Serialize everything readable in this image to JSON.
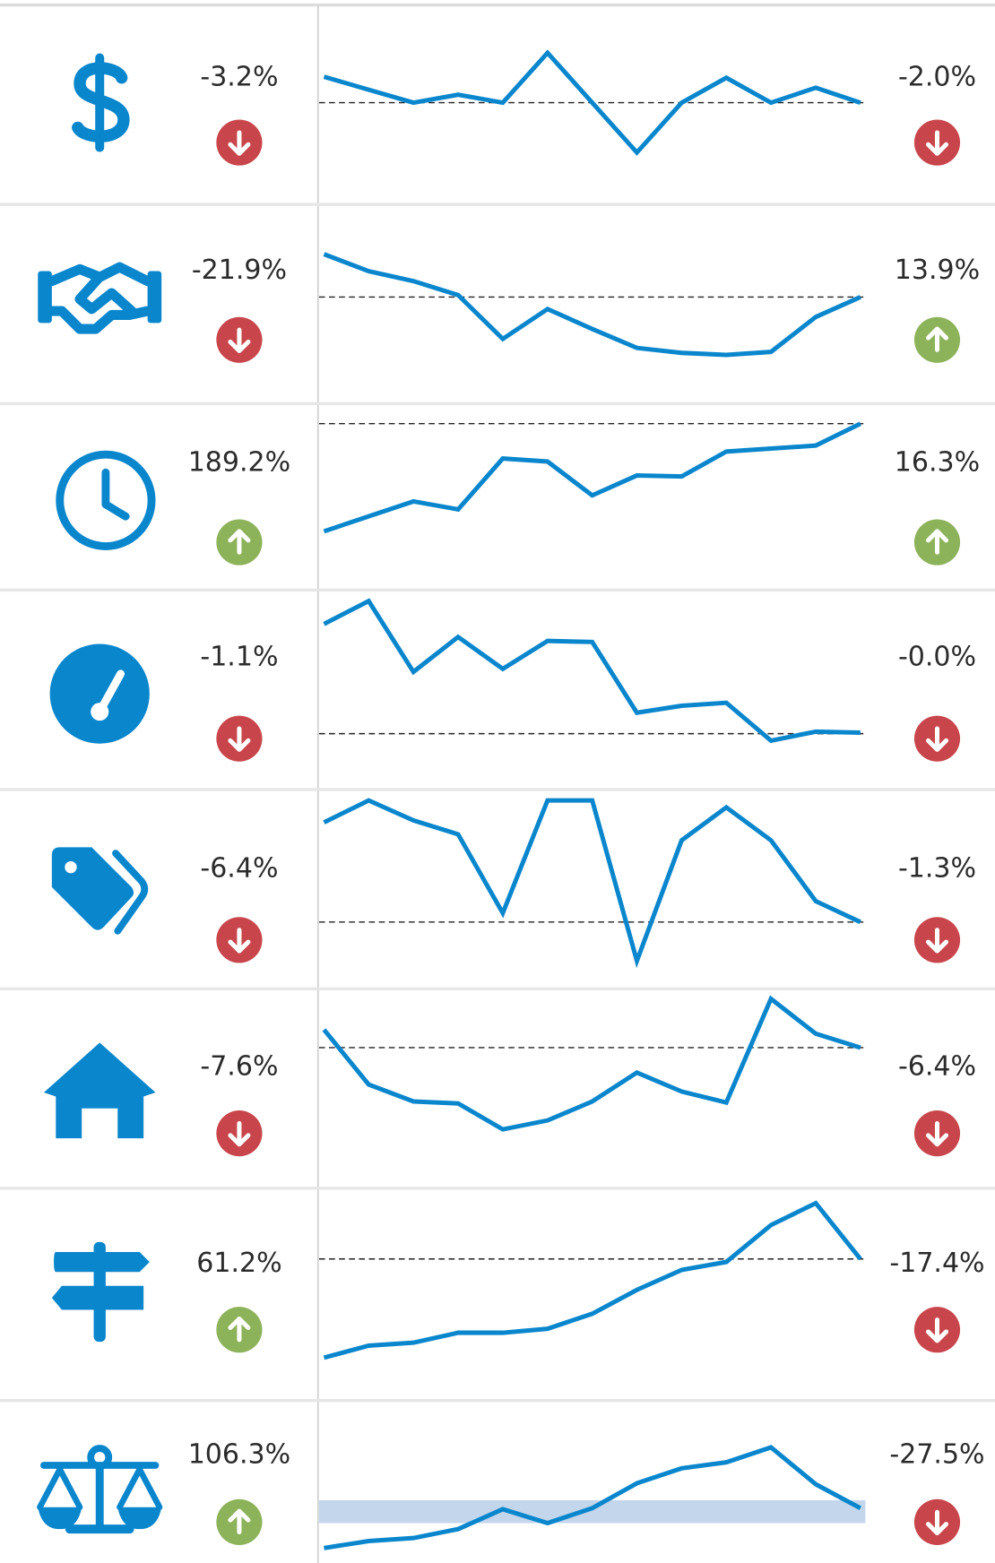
{
  "rows": [
    {
      "left_change": "-3.2%",
      "left_trend": "down",
      "spark": [
        128,
        115,
        102,
        110,
        102,
        152,
        102,
        52,
        102,
        127,
        102,
        117,
        102
      ],
      "reference": 102,
      "right_change": "-2.0%",
      "right_trend": "down"
    },
    {
      "left_change": "-21.9%",
      "left_trend": "down",
      "spark": [
        150,
        133,
        123,
        109,
        65,
        95,
        75,
        56,
        51,
        49,
        52,
        87,
        107
      ],
      "reference": 107,
      "right_change": "13.9%",
      "right_trend": "up"
    },
    {
      "left_change": "189.2%",
      "left_trend": "up",
      "spark": [
        59,
        74,
        89,
        81,
        132,
        129,
        95,
        115,
        114,
        139,
        142,
        145,
        167
      ],
      "reference": 167,
      "right_change": "16.3%",
      "right_trend": "up"
    },
    {
      "left_change": "-1.1%",
      "left_trend": "down",
      "spark": [
        166,
        189,
        118,
        153,
        121,
        149,
        148,
        77,
        84,
        87,
        49,
        58,
        57
      ],
      "reference": 56,
      "right_change": "-0.0%",
      "right_trend": "down"
    },
    {
      "left_change": "-6.4%",
      "left_trend": "down",
      "spark": [
        167,
        189,
        169,
        155,
        76,
        189,
        189,
        28,
        149,
        182,
        149,
        88,
        67
      ],
      "reference": 67,
      "right_change": "-1.3%",
      "right_trend": "down"
    },
    {
      "left_change": "-7.6%",
      "left_trend": "down",
      "spark": [
        159,
        104,
        87,
        85,
        59,
        68,
        87,
        116,
        97,
        86,
        190,
        155,
        141
      ],
      "reference": 141,
      "right_change": "-6.4%",
      "right_trend": "down"
    },
    {
      "left_change": "61.2%",
      "left_trend": "up",
      "spark": [
        43,
        55,
        58,
        68,
        68,
        72,
        87,
        111,
        131,
        139,
        176,
        198,
        142
      ],
      "reference": 142,
      "right_change": "-17.4%",
      "right_trend": "down"
    },
    {
      "left_change": "106.3%",
      "left_trend": "up",
      "spark": [
        15,
        22,
        25,
        34,
        54,
        40,
        55,
        80,
        95,
        101,
        116,
        79,
        55
      ],
      "reference_band": [
        40,
        63
      ],
      "right_change": "-27.5%",
      "right_trend": "down"
    }
  ]
}
